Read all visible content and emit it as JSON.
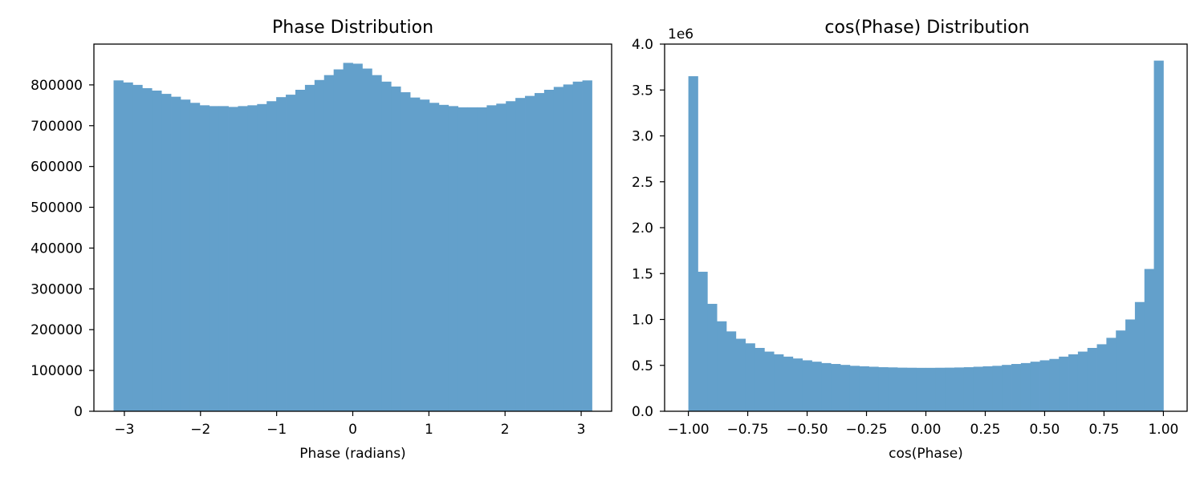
{
  "chart_data": [
    {
      "type": "bar",
      "title": "Phase Distribution",
      "xlabel": "Phase (radians)",
      "ylabel": "",
      "xlim": [
        -3.4,
        3.4
      ],
      "ylim": [
        0,
        900000
      ],
      "grid": false,
      "bar_color": "#63a0cb",
      "x_ticks": [
        -3,
        -2,
        -1,
        0,
        1,
        2,
        3
      ],
      "x_tick_labels": [
        "−3",
        "−2",
        "−1",
        "0",
        "1",
        "2",
        "3"
      ],
      "y_ticks": [
        0,
        100000,
        200000,
        300000,
        400000,
        500000,
        600000,
        700000,
        800000
      ],
      "y_tick_labels": [
        "0",
        "100000",
        "200000",
        "300000",
        "400000",
        "500000",
        "600000",
        "700000",
        "800000"
      ],
      "bin_range": [
        -3.14159,
        3.14159
      ],
      "values": [
        811000,
        806000,
        800000,
        792000,
        786000,
        778000,
        771000,
        764000,
        756000,
        750000,
        748000,
        748000,
        746000,
        748000,
        750000,
        753000,
        760000,
        770000,
        776000,
        788000,
        800000,
        812000,
        824000,
        838000,
        854000,
        852000,
        840000,
        824000,
        808000,
        796000,
        782000,
        769000,
        764000,
        756000,
        751000,
        748000,
        745000,
        745000,
        745000,
        750000,
        754000,
        760000,
        768000,
        773000,
        780000,
        788000,
        795000,
        801000,
        808000,
        811000
      ]
    },
    {
      "type": "bar",
      "title": "cos(Phase) Distribution",
      "xlabel": "cos(Phase)",
      "ylabel": "",
      "offset_label": "1e6",
      "xlim": [
        -1.1,
        1.1
      ],
      "ylim": [
        0,
        4.0
      ],
      "grid": false,
      "bar_color": "#63a0cb",
      "x_ticks": [
        -1.0,
        -0.75,
        -0.5,
        -0.25,
        0.0,
        0.25,
        0.5,
        0.75,
        1.0
      ],
      "x_tick_labels": [
        "−1.00",
        "−0.75",
        "−0.50",
        "−0.25",
        "0.00",
        "0.25",
        "0.50",
        "0.75",
        "1.00"
      ],
      "y_ticks": [
        0.0,
        0.5,
        1.0,
        1.5,
        2.0,
        2.5,
        3.0,
        3.5,
        4.0
      ],
      "y_tick_labels": [
        "0.0",
        "0.5",
        "1.0",
        "1.5",
        "2.0",
        "2.5",
        "3.0",
        "3.5",
        "4.0"
      ],
      "bin_range": [
        -1.0,
        1.0
      ],
      "values": [
        3.65,
        1.52,
        1.17,
        0.98,
        0.87,
        0.79,
        0.74,
        0.69,
        0.65,
        0.62,
        0.595,
        0.575,
        0.555,
        0.54,
        0.525,
        0.515,
        0.505,
        0.495,
        0.49,
        0.485,
        0.48,
        0.478,
        0.475,
        0.474,
        0.473,
        0.473,
        0.474,
        0.475,
        0.477,
        0.48,
        0.485,
        0.49,
        0.495,
        0.505,
        0.515,
        0.525,
        0.54,
        0.555,
        0.57,
        0.595,
        0.62,
        0.65,
        0.69,
        0.73,
        0.8,
        0.88,
        1.0,
        1.19,
        1.55,
        3.82
      ]
    }
  ]
}
